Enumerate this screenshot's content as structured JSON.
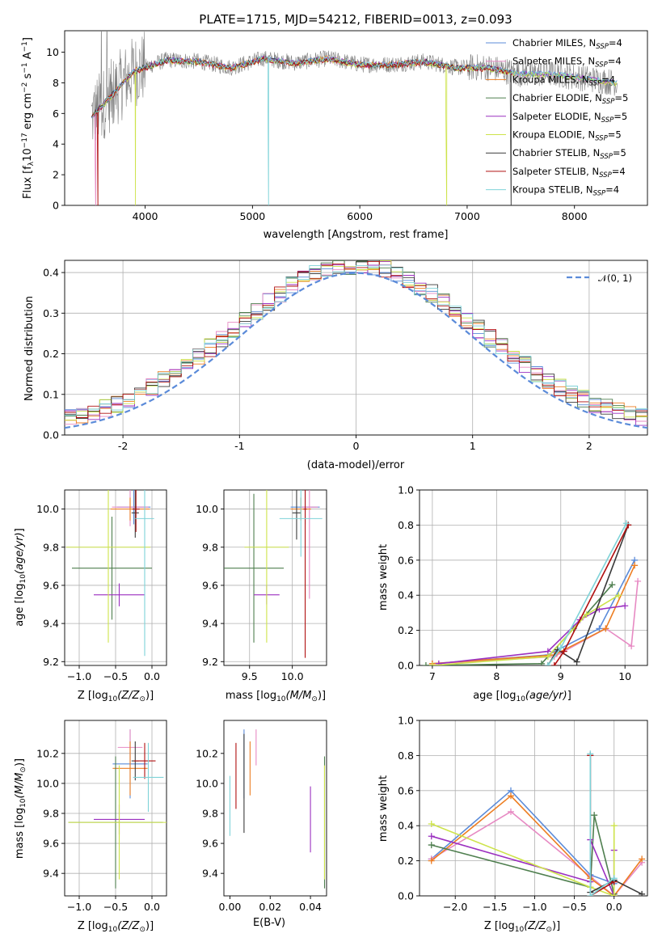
{
  "figure": {
    "title": "PLATE=1715, MJD=54212, FIBERID=0013, z=0.093"
  },
  "series_models": [
    {
      "name": "Chabrier MILES, N_{SSP}=4",
      "color": "#5b8bd9"
    },
    {
      "name": "Salpeter MILES, N_{SSP}=4",
      "color": "#e78ac3"
    },
    {
      "name": "Kroupa MILES, N_{SSP}=4",
      "color": "#ed7e22"
    },
    {
      "name": "Chabrier ELODIE, N_{SSP}=5",
      "color": "#4f7f4f"
    },
    {
      "name": "Salpeter ELODIE, N_{SSP}=5",
      "color": "#9b30c0"
    },
    {
      "name": "Kroupa ELODIE, N_{SSP}=5",
      "color": "#cde34a"
    },
    {
      "name": "Chabrier STELIB, N_{SSP}=5",
      "color": "#3a3a3a"
    },
    {
      "name": "Salpeter STELIB, N_{SSP}=4",
      "color": "#b01010"
    },
    {
      "name": "Kroupa STELIB, N_{SSP}=4",
      "color": "#7fd3d8"
    }
  ],
  "chart_data": [
    {
      "id": "spectrum",
      "type": "line",
      "xlabel": "wavelength [Angstrom, rest frame]",
      "ylabel": "Flux [f_λ10^{-17} erg cm^{-2} s^{-1} A^{-1}]",
      "xlim": [
        3250,
        8680
      ],
      "ylim": [
        0,
        11.4
      ],
      "xticks": [
        4000,
        5000,
        6000,
        7000,
        8000
      ],
      "yticks": [
        0,
        2,
        4,
        6,
        8,
        10
      ],
      "grid": false,
      "legend": "right",
      "data_color": "#808080",
      "continuum": {
        "x": [
          3500,
          3700,
          3900,
          4200,
          4500,
          4800,
          5100,
          5400,
          5700,
          6000,
          6300,
          6600,
          6900,
          7200,
          7500,
          7800,
          8100,
          8400
        ],
        "y": [
          5.8,
          7.3,
          8.8,
          9.5,
          9.4,
          9.0,
          9.6,
          9.3,
          9.6,
          9.2,
          9.2,
          9.4,
          9.0,
          9.0,
          8.6,
          8.6,
          8.3,
          8.0
        ]
      }
    },
    {
      "id": "residual_hist",
      "type": "histogram",
      "xlabel": "(data-model)/error",
      "ylabel": "Normed distribution",
      "xlim": [
        -2.5,
        2.5
      ],
      "ylim": [
        0,
        0.43
      ],
      "xticks": [
        -2,
        -1,
        0,
        1,
        2
      ],
      "yticks": [
        0.0,
        0.1,
        0.2,
        0.3,
        0.4
      ],
      "grid": true,
      "legend": "top-right",
      "reference_curve": {
        "name": "𝒩(0, 1)",
        "color": "#5b8bd9",
        "mu": 0,
        "sigma": 1
      },
      "bins": 50
    },
    {
      "id": "age_vs_Z",
      "type": "errorbar",
      "xlabel": "Z [log10(Z/Z⊙)]",
      "ylabel": "age  [log10(age/yr)]",
      "xlim": [
        -1.2,
        0.2
      ],
      "ylim": [
        9.18,
        10.1
      ],
      "xticks": [
        -1.0,
        -0.5,
        0.0
      ],
      "xtick_labels": [
        "−1.0",
        "−0.5",
        "0.0"
      ],
      "yticks": [
        9.2,
        9.4,
        9.6,
        9.8,
        10.0
      ],
      "grid": true,
      "points": [
        {
          "model": 0,
          "x": -0.25,
          "xerr": 0.23,
          "y": 10.01,
          "yerr": 0.09
        },
        {
          "model": 1,
          "x": -0.3,
          "xerr": 0.25,
          "y": 10.01,
          "yerr": 0.1
        },
        {
          "model": 2,
          "x": -0.3,
          "xerr": 0.27,
          "y": 10.0,
          "yerr": 0.06
        },
        {
          "model": 3,
          "x": -0.55,
          "xerr": 0.55,
          "y": 9.69,
          "yerr": 0.27
        },
        {
          "model": 4,
          "x": -0.45,
          "xerr": 0.35,
          "y": 9.55,
          "yerr": 0.06
        },
        {
          "model": 5,
          "x": -0.6,
          "xerr": 0.58,
          "y": 9.8,
          "yerr": 0.5
        },
        {
          "model": 6,
          "x": -0.23,
          "xerr": 0.05,
          "y": 9.98,
          "yerr": 0.13
        },
        {
          "model": 7,
          "x": -0.22,
          "xerr": 0.05,
          "y": 10.0,
          "yerr": 0.12
        },
        {
          "model": 8,
          "x": -0.1,
          "xerr": 0.13,
          "y": 9.95,
          "yerr": 0.72
        }
      ]
    },
    {
      "id": "age_vs_mass",
      "type": "errorbar",
      "xlabel": "mass [log10(M/M⊙)]",
      "ylabel": "",
      "xlim": [
        9.2,
        10.4
      ],
      "ylim": [
        9.18,
        10.1
      ],
      "xticks": [
        9.5,
        10.0
      ],
      "xtick_labels": [
        "9.5",
        "10.0"
      ],
      "yticks": [
        9.2,
        9.4,
        9.6,
        9.8,
        10.0
      ],
      "grid": true,
      "points": [
        {
          "model": 0,
          "x": 10.15,
          "xerr": 0.17,
          "y": 10.01,
          "yerr": 0.09
        },
        {
          "model": 1,
          "x": 10.2,
          "xerr": 0.1,
          "y": 10.01,
          "yerr": 0.48
        },
        {
          "model": 2,
          "x": 10.1,
          "xerr": 0.12,
          "y": 10.0,
          "yerr": 0.06
        },
        {
          "model": 3,
          "x": 9.55,
          "xerr": 0.35,
          "y": 9.69,
          "yerr": 0.39
        },
        {
          "model": 4,
          "x": 9.7,
          "xerr": 0.15,
          "y": 9.55,
          "yerr": 0.05
        },
        {
          "model": 5,
          "x": 9.7,
          "xerr": 0.26,
          "y": 9.8,
          "yerr": 0.5
        },
        {
          "model": 6,
          "x": 10.05,
          "xerr": 0.05,
          "y": 9.98,
          "yerr": 0.14
        },
        {
          "model": 7,
          "x": 10.15,
          "xerr": 0.02,
          "y": 10.0,
          "yerr": 0.78
        },
        {
          "model": 8,
          "x": 10.1,
          "xerr": 0.25,
          "y": 9.95,
          "yerr": 0.2
        }
      ]
    },
    {
      "id": "mass_weight_vs_age",
      "type": "line",
      "xlabel": "age  [log10(age/yr)]",
      "ylabel": "mass weight",
      "xlim": [
        6.8,
        10.35
      ],
      "ylim": [
        0,
        1.0
      ],
      "xticks": [
        7,
        8,
        9,
        10
      ],
      "yticks": [
        0.0,
        0.2,
        0.4,
        0.6,
        0.8,
        1.0
      ],
      "grid": true,
      "series": [
        {
          "model": 0,
          "x": [
            7.0,
            8.8,
            9.6,
            10.15
          ],
          "y": [
            0.01,
            0.06,
            0.21,
            0.6
          ]
        },
        {
          "model": 1,
          "x": [
            7.0,
            8.9,
            9.7,
            10.1,
            10.2
          ],
          "y": [
            0.01,
            0.05,
            0.21,
            0.11,
            0.48
          ]
        },
        {
          "model": 2,
          "x": [
            7.0,
            8.9,
            9.7,
            10.15
          ],
          "y": [
            0.01,
            0.06,
            0.21,
            0.57
          ]
        },
        {
          "model": 3,
          "x": [
            6.9,
            8.7,
            9.2,
            9.8
          ],
          "y": [
            0.0,
            0.01,
            0.21,
            0.46
          ]
        },
        {
          "model": 4,
          "x": [
            7.1,
            8.8,
            9.3,
            9.6,
            10.0
          ],
          "y": [
            0.01,
            0.08,
            0.26,
            0.32,
            0.34
          ]
        },
        {
          "model": 5,
          "x": [
            7.0,
            8.8,
            9.4,
            9.9
          ],
          "y": [
            0.0,
            0.05,
            0.29,
            0.4
          ]
        },
        {
          "model": 6,
          "x": [
            8.8,
            8.95,
            9.25,
            10.05
          ],
          "y": [
            0.0,
            0.09,
            0.02,
            0.8
          ]
        },
        {
          "model": 7,
          "x": [
            8.9,
            9.05,
            10.05
          ],
          "y": [
            0.0,
            0.08,
            0.8
          ]
        },
        {
          "model": 8,
          "x": [
            8.8,
            9.0,
            10.02
          ],
          "y": [
            0.0,
            0.1,
            0.81
          ]
        }
      ]
    },
    {
      "id": "mass_vs_Z",
      "type": "errorbar",
      "xlabel": "Z [log10(Z/Z⊙)]",
      "ylabel": "mass [log10(M/M⊙)]",
      "xlim": [
        -1.2,
        0.2
      ],
      "ylim": [
        9.25,
        10.42
      ],
      "xticks": [
        -1.0,
        -0.5,
        0.0
      ],
      "xtick_labels": [
        "−1.0",
        "−0.5",
        "0.0"
      ],
      "yticks": [
        9.4,
        9.6,
        9.8,
        10.0,
        10.2
      ],
      "grid": true,
      "points": [
        {
          "model": 0,
          "x": -0.3,
          "xerr": 0.24,
          "y": 10.13,
          "yerr": 0.23
        },
        {
          "model": 1,
          "x": -0.3,
          "xerr": 0.17,
          "y": 10.24,
          "yerr": 0.12
        },
        {
          "model": 2,
          "x": -0.3,
          "xerr": 0.24,
          "y": 10.1,
          "yerr": 0.18
        },
        {
          "model": 3,
          "x": -0.5,
          "xerr": 0.65,
          "y": 9.74,
          "yerr": 0.44
        },
        {
          "model": 4,
          "x": -0.45,
          "xerr": 0.35,
          "y": 9.76,
          "yerr": 0.1
        },
        {
          "model": 5,
          "x": -0.45,
          "xerr": 0.7,
          "y": 9.74,
          "yerr": 0.38
        },
        {
          "model": 6,
          "x": -0.23,
          "xerr": 0.05,
          "y": 10.15,
          "yerr": 0.13
        },
        {
          "model": 7,
          "x": -0.1,
          "xerr": 0.15,
          "y": 10.15,
          "yerr": 0.12
        },
        {
          "model": 8,
          "x": -0.05,
          "xerr": 0.21,
          "y": 10.04,
          "yerr": 0.23
        }
      ]
    },
    {
      "id": "mass_vs_EBV",
      "type": "errorbar",
      "xlabel": "E(B-V)",
      "ylabel": "",
      "xlim": [
        -0.003,
        0.048
      ],
      "ylim": [
        9.25,
        10.42
      ],
      "xticks": [
        0.0,
        0.02,
        0.04
      ],
      "xtick_labels": [
        "0.00",
        "0.02",
        "0.04"
      ],
      "yticks": [
        9.4,
        9.6,
        9.8,
        10.0,
        10.2
      ],
      "grid": false,
      "points": [
        {
          "model": 0,
          "x": 0.007,
          "xerr": 0,
          "y": 10.13,
          "yerr": 0.23
        },
        {
          "model": 1,
          "x": 0.013,
          "xerr": 0,
          "y": 10.24,
          "yerr": 0.12
        },
        {
          "model": 2,
          "x": 0.01,
          "xerr": 0,
          "y": 10.1,
          "yerr": 0.18
        },
        {
          "model": 3,
          "x": 0.047,
          "xerr": 0,
          "y": 9.74,
          "yerr": 0.44
        },
        {
          "model": 4,
          "x": 0.04,
          "xerr": 0,
          "y": 9.76,
          "yerr": 0.22
        },
        {
          "model": 5,
          "x": 0.047,
          "xerr": 0,
          "y": 9.74,
          "yerr": 0.38
        },
        {
          "model": 6,
          "x": 0.007,
          "xerr": 0,
          "y": 10.0,
          "yerr": 0.33
        },
        {
          "model": 7,
          "x": 0.003,
          "xerr": 0,
          "y": 10.05,
          "yerr": 0.22
        },
        {
          "model": 8,
          "x": 0.0,
          "xerr": 0,
          "y": 9.85,
          "yerr": 0.2
        }
      ]
    },
    {
      "id": "mass_weight_vs_Z",
      "type": "line",
      "xlabel": "Z [log10(Z/Z⊙)]",
      "ylabel": "mass weight",
      "xlim": [
        -2.45,
        0.42
      ],
      "ylim": [
        0,
        1.0
      ],
      "xticks": [
        -2.0,
        -1.5,
        -1.0,
        -0.5,
        0.0
      ],
      "xtick_labels": [
        "−2.0",
        "−1.5",
        "−1.0",
        "−0.5",
        "0.0"
      ],
      "yticks": [
        0.0,
        0.2,
        0.4,
        0.6,
        0.8,
        1.0
      ],
      "grid": true,
      "series": [
        {
          "model": 0,
          "x": [
            -2.3,
            -1.3,
            -0.3,
            0.0
          ],
          "y": [
            0.21,
            0.6,
            0.12,
            0.07
          ]
        },
        {
          "model": 1,
          "x": [
            -2.3,
            -1.3,
            -0.3,
            0.0,
            0.35
          ],
          "y": [
            0.21,
            0.48,
            0.11,
            0.0,
            0.19
          ]
        },
        {
          "model": 2,
          "x": [
            -2.3,
            -1.3,
            -0.3,
            0.0,
            0.35
          ],
          "y": [
            0.2,
            0.57,
            0.1,
            0.0,
            0.21
          ]
        },
        {
          "model": 3,
          "x": [
            -2.3,
            -0.3,
            -0.25,
            0.0
          ],
          "y": [
            0.29,
            0.05,
            0.46,
            0.01
          ]
        },
        {
          "model": 4,
          "x": [
            -2.3,
            -0.3,
            -0.3,
            0.0,
            0.0
          ],
          "y": [
            0.34,
            0.08,
            0.32,
            0.0,
            0.26
          ]
        },
        {
          "model": 5,
          "x": [
            -2.3,
            -0.3,
            0.0,
            0.0
          ],
          "y": [
            0.41,
            0.05,
            0.0,
            0.4
          ]
        },
        {
          "model": 6,
          "x": [
            -0.3,
            -0.3,
            0.0,
            0.35
          ],
          "y": [
            0.8,
            0.02,
            0.09,
            0.01
          ]
        },
        {
          "model": 7,
          "x": [
            -0.3,
            -0.3,
            0.0
          ],
          "y": [
            0.8,
            0.0,
            0.08
          ]
        },
        {
          "model": 8,
          "x": [
            -0.3,
            -0.3,
            0.0
          ],
          "y": [
            0.81,
            0.0,
            0.1
          ]
        }
      ]
    }
  ]
}
